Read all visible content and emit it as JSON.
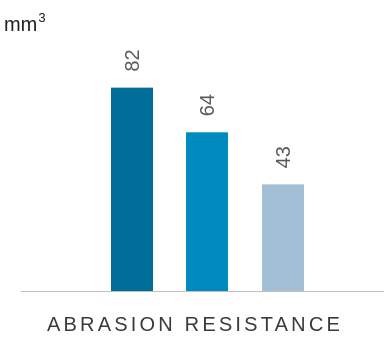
{
  "chart_data": {
    "type": "bar",
    "title": "",
    "unit": {
      "base": "mm",
      "exponent": "3"
    },
    "xlabel": "ABRASION RESISTANCE",
    "ylabel": "",
    "ylim": [
      0,
      100
    ],
    "grid": false,
    "legend": "none",
    "values": [
      82,
      64,
      43
    ],
    "data_labels": [
      "82",
      "64",
      "43"
    ],
    "colors": [
      "#006d98",
      "#008bc0",
      "#a2bfd6"
    ],
    "label_color": "#595959",
    "axis_color": "#bfbfbf"
  }
}
